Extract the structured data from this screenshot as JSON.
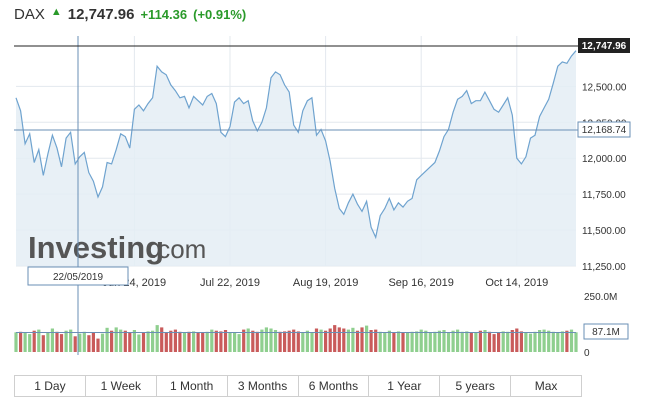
{
  "header": {
    "ticker": "DAX",
    "price": "12,747.96",
    "change": "+114.36",
    "change_pct": "(+0.91%)",
    "arrow_icon": "up-arrow-icon"
  },
  "colors": {
    "line": "#6fa3cf",
    "area": "#e4edf5",
    "up_bar": "#8fcf8f",
    "down_bar": "#c95b5b",
    "positive": "#2a9a2a"
  },
  "watermark": {
    "brand": "Investing",
    "suffix": ".com"
  },
  "crosshair": {
    "date_label": "22/05/2019",
    "value_label": "12,168.74",
    "volume_label": "87.1M"
  },
  "last_value_label": "12,747.96",
  "ranges": [
    "1 Day",
    "1 Week",
    "1 Month",
    "3 Months",
    "6 Months",
    "1 Year",
    "5 years",
    "Max"
  ],
  "chart_data": {
    "type": "area",
    "y_ticks": [
      "12,500.00",
      "12,250.00",
      "12,000.00",
      "11,750.00",
      "11,500.00",
      "11,250.00"
    ],
    "y_tick_values": [
      12500,
      12250,
      12000,
      11750,
      11500,
      11250
    ],
    "ylim": [
      11250,
      12850
    ],
    "x_ticks": [
      "Jun 24, 2019",
      "Jul 22, 2019",
      "Aug 19, 2019",
      "Sep 16, 2019",
      "Oct 14, 2019"
    ],
    "x_tick_index": [
      26,
      47,
      68,
      89,
      110
    ],
    "volume_ticks": [
      "250.0M",
      "0"
    ],
    "volume_tick_values": [
      250,
      0
    ],
    "volume_ylim": [
      0,
      250
    ],
    "series": [
      {
        "values": [
          12420,
          12330,
          12100,
          12170,
          11970,
          12060,
          11880,
          12030,
          12160,
          12070,
          11940,
          12140,
          12180,
          11960,
          12010,
          12040,
          11900,
          11840,
          11730,
          11800,
          11970,
          11960,
          12060,
          12170,
          12150,
          12070,
          12340,
          12370,
          12330,
          12380,
          12420,
          12640,
          12600,
          12580,
          12510,
          12470,
          12420,
          12430,
          12350,
          12430,
          12400,
          12370,
          12430,
          12450,
          12380,
          12180,
          12150,
          12220,
          12390,
          12420,
          12380,
          12400,
          12260,
          12190,
          12250,
          12350,
          12560,
          12600,
          12580,
          12510,
          12460,
          12230,
          12180,
          12330,
          12400,
          12420,
          12160,
          12200,
          12120,
          11980,
          11790,
          11650,
          11610,
          11690,
          11750,
          11680,
          11630,
          11700,
          11520,
          11450,
          11600,
          11650,
          11720,
          11640,
          11690,
          11660,
          11700,
          11720,
          11850,
          11880,
          11910,
          11940,
          11970,
          12050,
          12150,
          12200,
          12320,
          12410,
          12430,
          12470,
          12380,
          12400,
          12400,
          12460,
          12400,
          12340,
          12320,
          12370,
          12420,
          12300,
          12000,
          11960,
          12010,
          12140,
          12160,
          12290,
          12350,
          12410,
          12520,
          12640,
          12670,
          12660,
          12710,
          12748
        ],
        "volume_m": [
          88,
          90,
          85,
          80,
          95,
          100,
          75,
          85,
          105,
          90,
          80,
          95,
          100,
          70,
          82,
          90,
          75,
          88,
          60,
          82,
          108,
          95,
          110,
          100,
          95,
          88,
          98,
          78,
          88,
          92,
          95,
          120,
          110,
          85,
          95,
          100,
          90,
          85,
          90,
          92,
          88,
          85,
          90,
          100,
          95,
          92,
          98,
          85,
          88,
          80,
          100,
          105,
          95,
          90,
          100,
          110,
          105,
          98,
          90,
          92,
          95,
          100,
          92,
          85,
          95,
          88,
          105,
          100,
          95,
          105,
          120,
          110,
          105,
          100,
          108,
          95,
          110,
          118,
          98,
          100,
          90,
          85,
          95,
          88,
          92,
          85,
          88,
          90,
          92,
          100,
          95,
          85,
          90,
          95,
          98,
          88,
          95,
          100,
          90,
          92,
          88,
          85,
          95,
          98,
          90,
          80,
          85,
          92,
          90,
          98,
          105,
          92,
          88,
          82,
          90,
          98,
          100,
          95,
          90,
          85,
          92,
          95,
          100,
          88
        ],
        "volume_up": [
          1,
          0,
          1,
          1,
          0,
          1,
          0,
          1,
          1,
          0,
          0,
          1,
          1,
          0,
          1,
          1,
          0,
          0,
          0,
          1,
          1,
          0,
          1,
          1,
          0,
          0,
          1,
          1,
          0,
          1,
          1,
          1,
          0,
          0,
          0,
          0,
          0,
          1,
          0,
          1,
          0,
          0,
          1,
          1,
          0,
          0,
          0,
          1,
          1,
          1,
          0,
          1,
          0,
          0,
          1,
          1,
          1,
          1,
          0,
          0,
          0,
          0,
          0,
          1,
          1,
          1,
          0,
          1,
          0,
          0,
          0,
          0,
          0,
          1,
          1,
          0,
          0,
          1,
          0,
          0,
          1,
          1,
          1,
          0,
          1,
          0,
          1,
          1,
          1,
          1,
          1,
          1,
          1,
          1,
          1,
          1,
          1,
          1,
          1,
          1,
          0,
          1,
          0,
          1,
          0,
          0,
          0,
          1,
          1,
          0,
          0,
          0,
          1,
          1,
          1,
          1,
          1,
          1,
          1,
          1,
          1,
          0,
          1,
          1
        ]
      }
    ],
    "grid": true
  }
}
